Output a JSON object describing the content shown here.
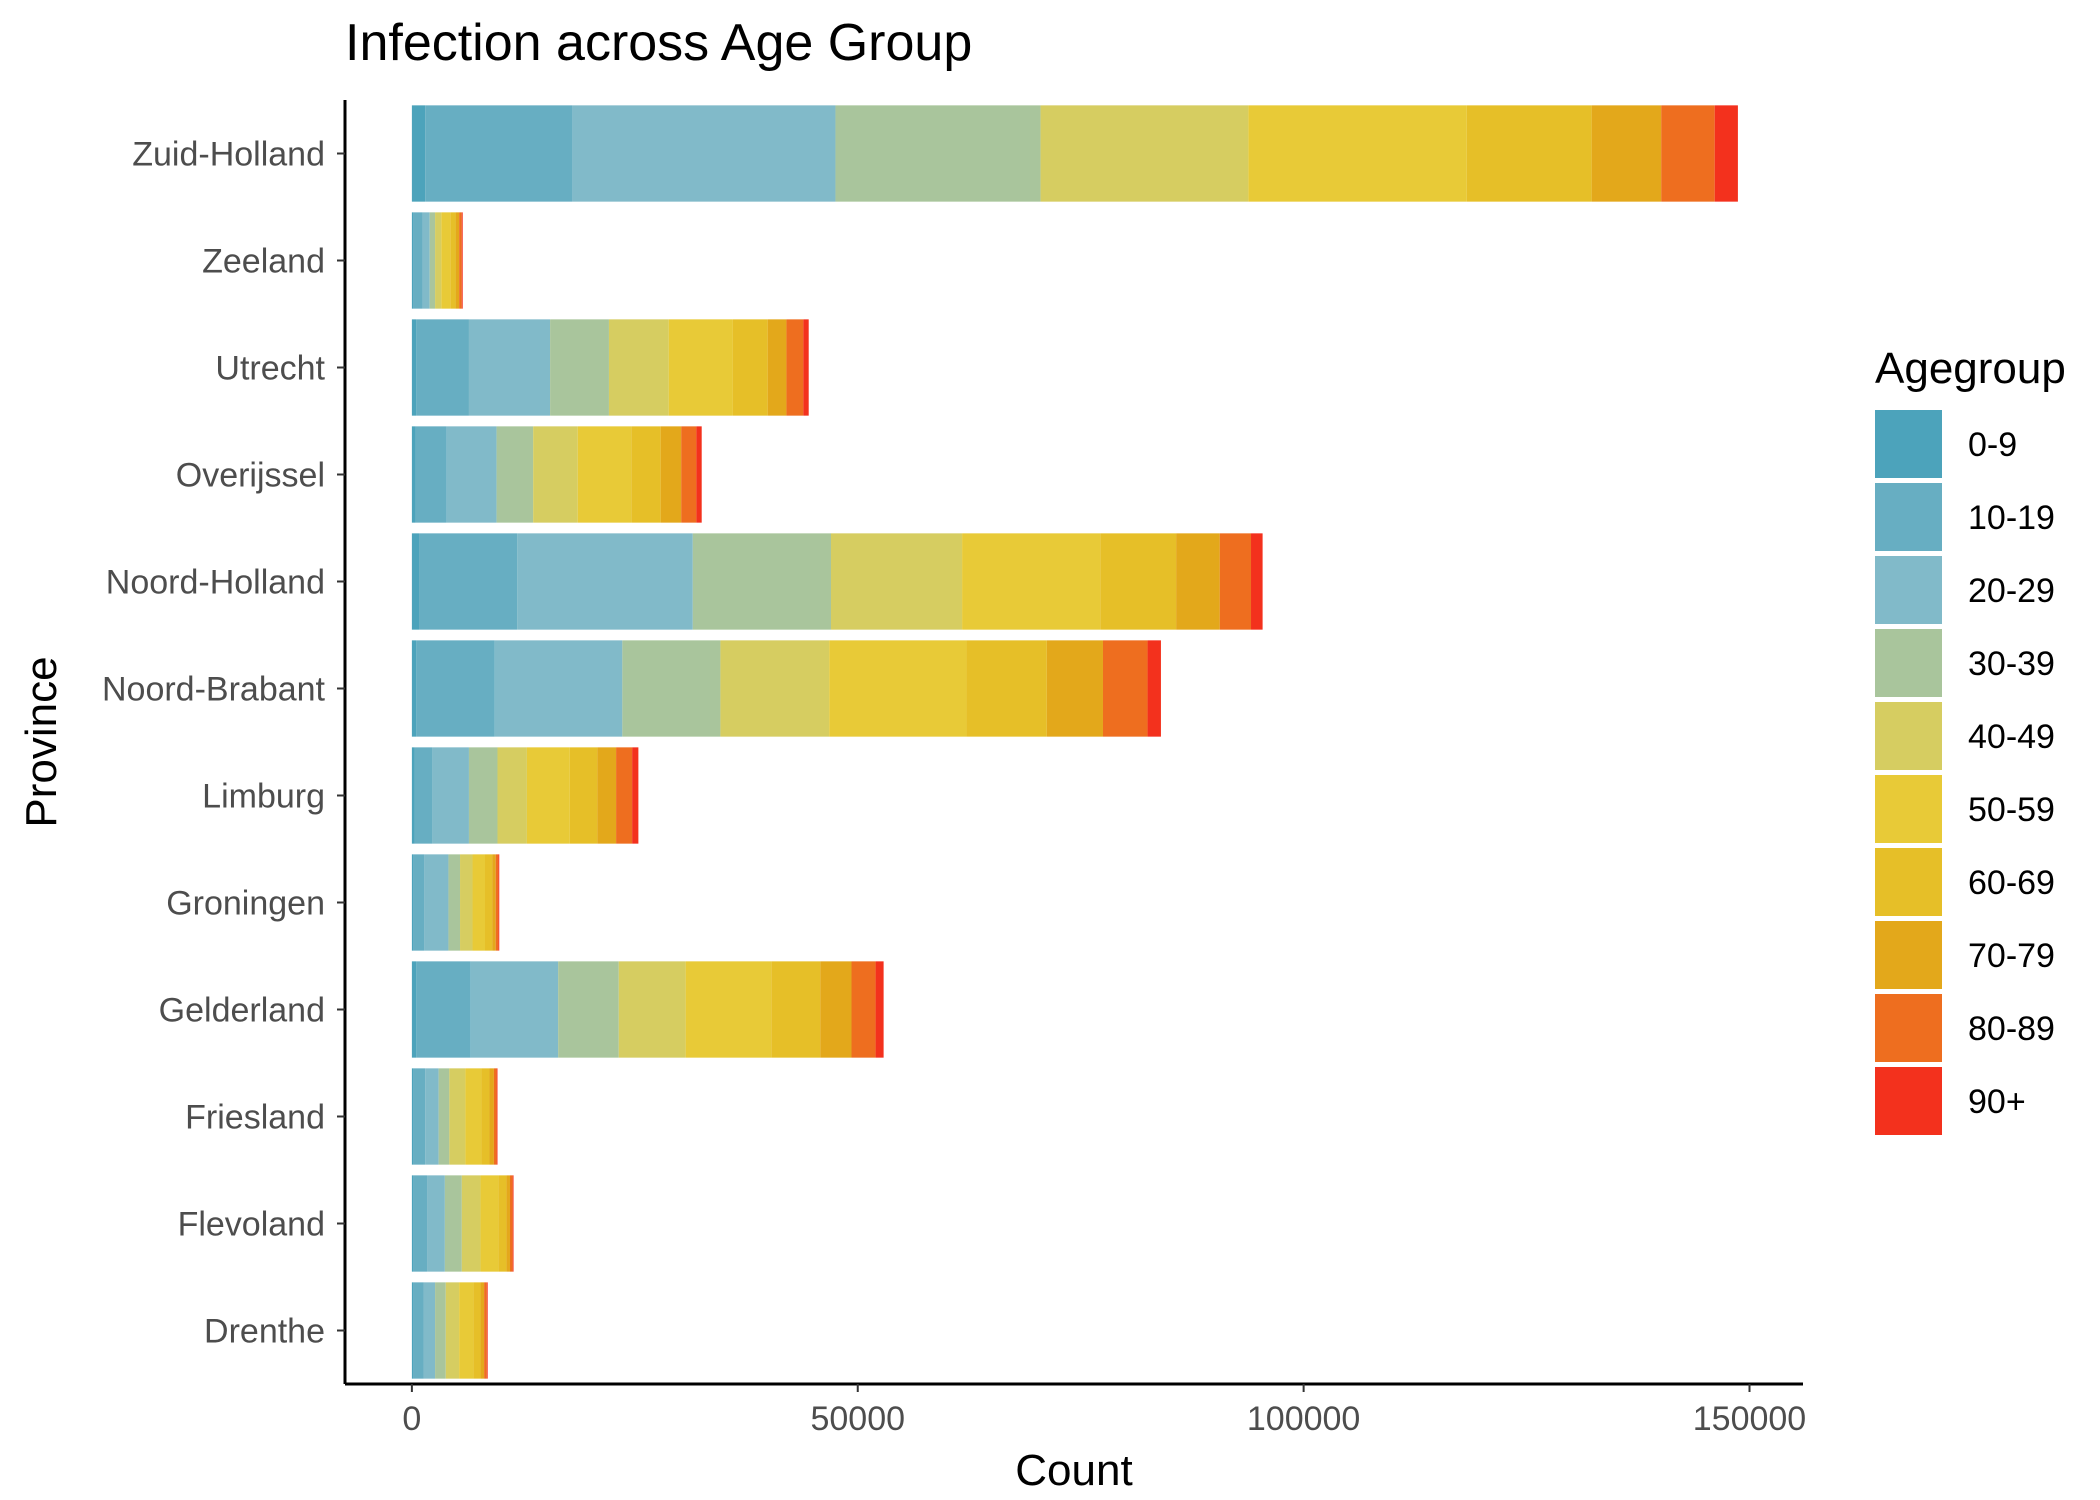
{
  "chart_data": {
    "type": "bar",
    "orientation": "horizontal",
    "stacked": true,
    "title": "Infection across Age Group",
    "xlabel": "Count",
    "ylabel": "Province",
    "xlim": [
      -7500,
      156000
    ],
    "x_ticks": [
      0,
      50000,
      100000,
      150000
    ],
    "x_tick_labels": [
      "0",
      "50000",
      "100000",
      "150000"
    ],
    "grid": false,
    "legend": {
      "title": "Agegroup",
      "position": "right"
    },
    "categories": [
      "Zuid-Holland",
      "Zeeland",
      "Utrecht",
      "Overijssel",
      "Noord-Holland",
      "Noord-Brabant",
      "Limburg",
      "Groningen",
      "Gelderland",
      "Friesland",
      "Flevoland",
      "Drenthe"
    ],
    "series": [
      {
        "name": "0-9",
        "color": "#4CA3BB",
        "values": [
          1500,
          200,
          500,
          400,
          800,
          500,
          300,
          200,
          500,
          200,
          200,
          200
        ]
      },
      {
        "name": "10-19",
        "color": "#67AEC2",
        "values": [
          16500,
          1000,
          5900,
          3500,
          11000,
          8800,
          2000,
          1200,
          6100,
          1300,
          1500,
          1100
        ]
      },
      {
        "name": "20-29",
        "color": "#81BAC9",
        "values": [
          29500,
          800,
          9100,
          5600,
          19700,
          14300,
          4100,
          2700,
          9800,
          1500,
          2000,
          1300
        ]
      },
      {
        "name": "30-39",
        "color": "#A9C59C",
        "values": [
          23000,
          600,
          6600,
          4100,
          15500,
          11000,
          3200,
          1300,
          6800,
          1200,
          1900,
          1200
        ]
      },
      {
        "name": "40-49",
        "color": "#D6CD61",
        "values": [
          23300,
          700,
          6700,
          5000,
          14700,
          12200,
          3300,
          1400,
          7500,
          1800,
          2100,
          1500
        ]
      },
      {
        "name": "50-59",
        "color": "#E8CA37",
        "values": [
          24500,
          1000,
          7200,
          6000,
          15500,
          15400,
          4800,
          1400,
          9600,
          1800,
          2000,
          1600
        ]
      },
      {
        "name": "60-69",
        "color": "#E6BF28",
        "values": [
          14000,
          600,
          3900,
          3300,
          8500,
          9000,
          3100,
          800,
          5500,
          900,
          900,
          800
        ]
      },
      {
        "name": "70-79",
        "color": "#E3A81B",
        "values": [
          7800,
          400,
          2100,
          2300,
          4900,
          6300,
          2100,
          400,
          3500,
          500,
          400,
          400
        ]
      },
      {
        "name": "80-89",
        "color": "#EE6E1F",
        "values": [
          6000,
          300,
          1900,
          1700,
          3500,
          5000,
          1800,
          300,
          2700,
          300,
          300,
          300
        ]
      },
      {
        "name": "90+",
        "color": "#F3311D",
        "values": [
          2600,
          100,
          600,
          600,
          1300,
          1500,
          700,
          100,
          900,
          100,
          100,
          100
        ]
      }
    ]
  }
}
